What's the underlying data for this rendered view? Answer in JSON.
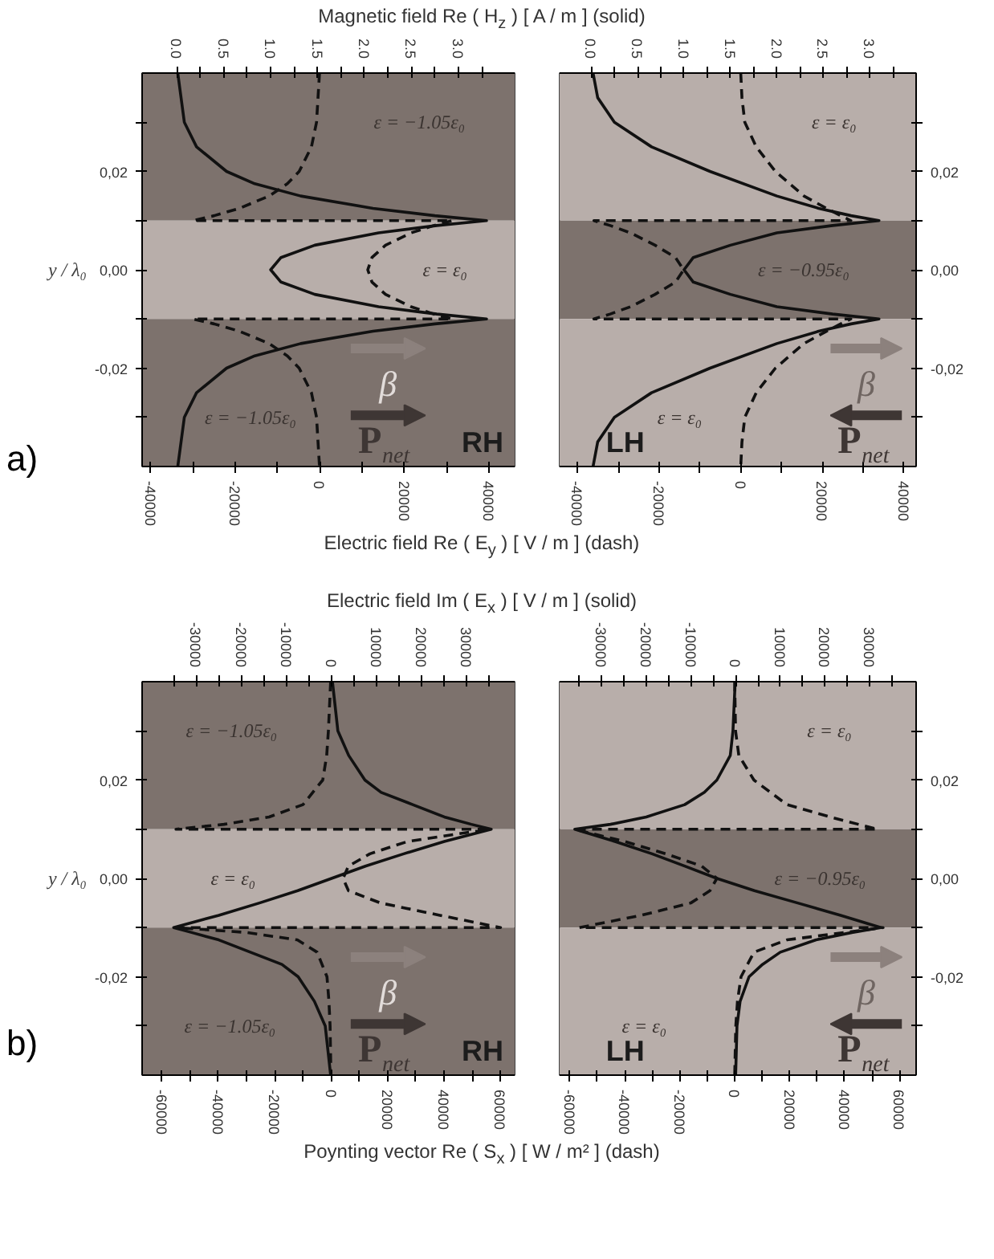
{
  "chart_data": [
    {
      "type": "line",
      "x2label": "Magnetic field Re ( H$_{z}$ ) [ A / m ] (solid)",
      "xlabel": "Electric field Re ( E$_{y}$ ) [ V / m ] (dash)",
      "ylabel": "y / λ₀",
      "xlim": [
        -42000,
        46000
      ],
      "x2lim": [
        -0.37,
        3.6
      ],
      "ylim": [
        -0.04,
        0.04
      ],
      "xticks": [
        -40000,
        {
          "value": -30000,
          "label": null
        },
        -20000,
        {
          "value": -10000,
          "label": null
        },
        0,
        {
          "value": 10000,
          "label": null
        },
        20000,
        {
          "value": 30000,
          "label": null
        },
        40000
      ],
      "x2ticks": [
        {
          "value": 0,
          "label": "0.0"
        },
        {
          "value": 0.25,
          "label": null
        },
        0.5,
        {
          "value": 0.75,
          "label": null
        },
        {
          "value": 1,
          "label": "1.0"
        },
        {
          "value": 1.25,
          "label": null
        },
        1.5,
        {
          "value": 1.75,
          "label": null
        },
        {
          "value": 2,
          "label": "2.0"
        },
        {
          "value": 2.25,
          "label": null
        },
        2.5,
        {
          "value": 2.75,
          "label": null
        },
        {
          "value": 3,
          "label": "3.0"
        },
        {
          "value": 3.25,
          "label": null
        }
      ],
      "yticks": [
        {
          "value": -0.03,
          "label": null
        },
        {
          "value": -0.02,
          "label": "-0,02"
        },
        {
          "value": -0.01,
          "label": null
        },
        {
          "value": 0,
          "label": "0,00"
        },
        {
          "value": 0.01,
          "label": null
        },
        {
          "value": 0.02,
          "label": "0,02"
        },
        {
          "value": 0.03,
          "label": null
        }
      ],
      "bands": [
        {
          "axis": "y",
          "from": 0.01,
          "to": 0.04,
          "color": "#7d726d",
          "label": "ε = −1.05ε₀"
        },
        {
          "axis": "y",
          "from": -0.01,
          "to": 0.01,
          "color": "#b8aeaa",
          "label": "ε = ε₀"
        },
        {
          "axis": "y",
          "from": -0.04,
          "to": -0.01,
          "color": "#7d726d",
          "label": "ε = −1.05ε₀"
        }
      ],
      "series": [
        {
          "color": "#111111",
          "axis": "x2",
          "line_style": "solid",
          "values": [
            0.04,
            0.03,
            0.025,
            0.02,
            0.0175,
            0.015,
            0.0125,
            0.011,
            0.01,
            0.009,
            0.0075,
            0.005,
            0.0025,
            0,
            -0.0025,
            -0.005,
            -0.0075,
            -0.009,
            -0.01,
            -0.011,
            -0.0125,
            -0.015,
            -0.0175,
            -0.02,
            -0.025,
            -0.03,
            -0.04
          ],
          "x": [
            0.01,
            0.08,
            0.21,
            0.53,
            0.83,
            1.32,
            2.09,
            2.75,
            3.3,
            2.77,
            2.15,
            1.47,
            1.11,
            1.0,
            1.11,
            1.47,
            2.15,
            2.77,
            3.3,
            2.75,
            2.09,
            1.32,
            0.83,
            0.53,
            0.21,
            0.08,
            0.01
          ]
        },
        {
          "color": "#111111",
          "line_style": "dashed",
          "values": [
            0.04,
            0.03,
            0.025,
            0.02,
            0.0175,
            0.015,
            0.0125,
            0.011,
            0.01,
            0.01,
            0.009,
            0.0075,
            0.005,
            0.0025,
            0,
            -0.0025,
            -0.005,
            -0.0075,
            -0.009,
            -0.01,
            -0.01,
            -0.011,
            -0.0125,
            -0.015,
            -0.0175,
            -0.02,
            -0.025,
            -0.03,
            -0.04
          ],
          "x": [
            -100,
            -800,
            -2000,
            -4900,
            -7700,
            -12000,
            -19000,
            -25000,
            -30000,
            31300,
            26900,
            21500,
            15500,
            12300,
            11300,
            12300,
            15500,
            21500,
            26900,
            31300,
            -30000,
            -25000,
            -19000,
            -12000,
            -7700,
            -4900,
            -2000,
            -800,
            -100
          ]
        }
      ],
      "annotations": [
        "RH",
        "β",
        "P$_{net}$",
        "a)"
      ]
    },
    {
      "type": "line",
      "xlim": [
        -44400,
        43000
      ],
      "x2lim": [
        -0.34,
        3.5
      ],
      "ylim": [
        -0.04,
        0.04
      ],
      "xticks": [
        -40000,
        {
          "value": -30000,
          "label": null
        },
        -20000,
        {
          "value": -10000,
          "label": null
        },
        0,
        {
          "value": 10000,
          "label": null
        },
        20000,
        {
          "value": 30000,
          "label": null
        },
        40000
      ],
      "x2ticks": [
        {
          "value": 0,
          "label": "0.0"
        },
        {
          "value": 0.25,
          "label": null
        },
        0.5,
        {
          "value": 0.75,
          "label": null
        },
        {
          "value": 1,
          "label": "1.0"
        },
        {
          "value": 1.25,
          "label": null
        },
        1.5,
        {
          "value": 1.75,
          "label": null
        },
        {
          "value": 2,
          "label": "2.0"
        },
        {
          "value": 2.25,
          "label": null
        },
        2.5,
        {
          "value": 2.75,
          "label": null
        },
        {
          "value": 3,
          "label": "3.0"
        },
        {
          "value": 3.25,
          "label": null
        }
      ],
      "yticks": [
        {
          "value": -0.03,
          "label": null
        },
        {
          "value": -0.02,
          "label": "-0,02"
        },
        {
          "value": -0.01,
          "label": null
        },
        {
          "value": 0,
          "label": "0,00"
        },
        {
          "value": 0.01,
          "label": null
        },
        {
          "value": 0.02,
          "label": "0,02"
        },
        {
          "value": 0.03,
          "label": null
        }
      ],
      "bands": [
        {
          "axis": "y",
          "from": 0.01,
          "to": 0.04,
          "color": "#b8aeaa",
          "label": "ε = ε₀"
        },
        {
          "axis": "y",
          "from": -0.01,
          "to": 0.01,
          "color": "#7d726d",
          "label": "ε = −0.95ε₀"
        },
        {
          "axis": "y",
          "from": -0.04,
          "to": -0.01,
          "color": "#b8aeaa",
          "label": "ε = ε₀"
        }
      ],
      "series": [
        {
          "color": "#111111",
          "axis": "x2",
          "line_style": "solid",
          "values": [
            0.04,
            0.035,
            0.03,
            0.025,
            0.02,
            0.015,
            0.0125,
            0.011,
            0.01,
            0.009,
            0.0075,
            0.005,
            0.0025,
            0,
            -0.0025,
            -0.005,
            -0.0075,
            -0.009,
            -0.01,
            -0.011,
            -0.0125,
            -0.015,
            -0.02,
            -0.025,
            -0.03,
            -0.035,
            -0.04
          ],
          "x": [
            0.02,
            0.07,
            0.25,
            0.65,
            1.28,
            2.0,
            2.45,
            2.8,
            3.1,
            2.6,
            2.0,
            1.5,
            1.1,
            1.0,
            1.1,
            1.5,
            2.0,
            2.6,
            3.1,
            2.8,
            2.45,
            2.0,
            1.28,
            0.65,
            0.25,
            0.07,
            0.02
          ]
        },
        {
          "color": "#111111",
          "line_style": "dashed",
          "values": [
            0.04,
            0.035,
            0.03,
            0.025,
            0.02,
            0.015,
            0.0125,
            0.011,
            0.01,
            0.01,
            0.009,
            0.0075,
            0.005,
            0.0025,
            0,
            -0.0025,
            -0.005,
            -0.0075,
            -0.009,
            -0.01,
            -0.01,
            -0.011,
            -0.0125,
            -0.015,
            -0.02,
            -0.025,
            -0.03,
            -0.035,
            -0.04
          ],
          "x": [
            0,
            300,
            1000,
            3800,
            8500,
            15500,
            21000,
            24500,
            27000,
            -36000,
            -32000,
            -27000,
            -21000,
            -16000,
            -14000,
            -16000,
            -21000,
            -27000,
            -32000,
            -36000,
            27000,
            24500,
            21000,
            15500,
            8500,
            3800,
            1000,
            300,
            0
          ]
        }
      ],
      "annotations": [
        "LH",
        "β",
        "P$_{net}$"
      ]
    },
    {
      "type": "line",
      "x2label": "Electric field Im ( E$_{x}$ ) [ V / m ] (solid)",
      "xlabel": "Poynting vector Re ( S$_{x}$ ) [ W / m² ] (dash)",
      "ylabel": "y / λ₀",
      "xlim": [
        -67000,
        65000
      ],
      "x2lim": [
        -42000,
        40600
      ],
      "ylim": [
        -0.04,
        0.04
      ],
      "xticks": [
        -60000,
        {
          "value": -50000,
          "label": null
        },
        -40000,
        {
          "value": -30000,
          "label": null
        },
        -20000,
        {
          "value": -10000,
          "label": null
        },
        0,
        {
          "value": 10000,
          "label": null
        },
        20000,
        {
          "value": 30000,
          "label": null
        },
        40000,
        {
          "value": 50000,
          "label": null
        },
        60000
      ],
      "x2ticks": [
        {
          "value": -35000,
          "label": null
        },
        -30000,
        {
          "value": -25000,
          "label": null
        },
        -20000,
        {
          "value": -15000,
          "label": null
        },
        -10000,
        {
          "value": -5000,
          "label": null
        },
        0,
        {
          "value": 5000,
          "label": null
        },
        10000,
        {
          "value": 15000,
          "label": null
        },
        20000,
        {
          "value": 25000,
          "label": null
        },
        30000,
        {
          "value": 35000,
          "label": null
        }
      ],
      "yticks": [
        {
          "value": -0.03,
          "label": null
        },
        {
          "value": -0.02,
          "label": "-0,02"
        },
        {
          "value": -0.01,
          "label": null
        },
        {
          "value": 0,
          "label": "0,00"
        },
        {
          "value": 0.01,
          "label": null
        },
        {
          "value": 0.02,
          "label": "0,02"
        },
        {
          "value": 0.03,
          "label": null
        }
      ],
      "bands": [
        {
          "axis": "y",
          "from": 0.01,
          "to": 0.04,
          "color": "#7d726d",
          "label": "ε = −1.05ε₀"
        },
        {
          "axis": "y",
          "from": -0.01,
          "to": 0.01,
          "color": "#b8aeaa",
          "label": "ε = ε₀"
        },
        {
          "axis": "y",
          "from": -0.04,
          "to": -0.01,
          "color": "#7d726d",
          "label": "ε = −1.05ε₀"
        }
      ],
      "series": [
        {
          "color": "#111111",
          "axis": "x2",
          "line_style": "solid",
          "values": [
            0.04,
            0.03,
            0.025,
            0.02,
            0.0175,
            0.015,
            0.0125,
            0.011,
            0.01,
            0.0075,
            0.005,
            0.0025,
            0,
            -0.0025,
            -0.005,
            -0.0075,
            -0.01,
            -0.011,
            -0.0125,
            -0.015,
            -0.0175,
            -0.02,
            -0.025,
            -0.03,
            -0.04
          ],
          "x": [
            200,
            1400,
            3800,
            7400,
            11000,
            18000,
            25000,
            31000,
            35400,
            25000,
            16000,
            7500,
            0,
            -7500,
            -16000,
            -25000,
            -35000,
            -31000,
            -25000,
            -18000,
            -11000,
            -7400,
            -3800,
            -1400,
            -200
          ]
        },
        {
          "color": "#111111",
          "line_style": "dashed",
          "values": [
            0.04,
            0.03,
            0.025,
            0.02,
            0.015,
            0.0125,
            0.011,
            0.01,
            0.01,
            0.0075,
            0.005,
            0.0025,
            0,
            -0.0025,
            -0.005,
            -0.0075,
            -0.01,
            -0.01,
            -0.011,
            -0.0125,
            -0.015,
            -0.02,
            -0.025,
            -0.03,
            -0.04
          ],
          "x": [
            -200,
            -1000,
            -1600,
            -3000,
            -10000,
            -22000,
            -38000,
            -55000,
            56000,
            27000,
            13700,
            6100,
            4200,
            6100,
            17500,
            38500,
            60000,
            -55000,
            -30000,
            -12000,
            -5000,
            -1500,
            -800,
            -400,
            -100
          ]
        }
      ],
      "annotations": [
        "RH",
        "β",
        "P$_{net}$",
        "b)"
      ]
    },
    {
      "type": "line",
      "xlim": [
        -63700,
        66000
      ],
      "x2lim": [
        -39400,
        40400
      ],
      "ylim": [
        -0.04,
        0.04
      ],
      "xticks": [
        -60000,
        {
          "value": -50000,
          "label": null
        },
        -40000,
        {
          "value": -30000,
          "label": null
        },
        -20000,
        {
          "value": -10000,
          "label": null
        },
        0,
        {
          "value": 10000,
          "label": null
        },
        20000,
        {
          "value": 30000,
          "label": null
        },
        40000,
        {
          "value": 50000,
          "label": null
        },
        60000
      ],
      "x2ticks": [
        {
          "value": -35000,
          "label": null
        },
        -30000,
        {
          "value": -25000,
          "label": null
        },
        -20000,
        {
          "value": -15000,
          "label": null
        },
        -10000,
        {
          "value": -5000,
          "label": null
        },
        0,
        {
          "value": 5000,
          "label": null
        },
        10000,
        {
          "value": 15000,
          "label": null
        },
        20000,
        {
          "value": 25000,
          "label": null
        },
        30000,
        {
          "value": 35000,
          "label": null
        }
      ],
      "yticks": [
        {
          "value": -0.03,
          "label": null
        },
        {
          "value": -0.02,
          "label": "-0,02"
        },
        {
          "value": -0.01,
          "label": null
        },
        {
          "value": 0,
          "label": "0,00"
        },
        {
          "value": 0.01,
          "label": null
        },
        {
          "value": 0.02,
          "label": "0,02"
        },
        {
          "value": 0.03,
          "label": null
        }
      ],
      "bands": [
        {
          "axis": "y",
          "from": 0.01,
          "to": 0.04,
          "color": "#b8aeaa",
          "label": "ε = ε₀"
        },
        {
          "axis": "y",
          "from": -0.01,
          "to": 0.01,
          "color": "#7d726d",
          "label": "ε = −0.95ε₀"
        },
        {
          "axis": "y",
          "from": -0.04,
          "to": -0.01,
          "color": "#b8aeaa",
          "label": "ε = ε₀"
        }
      ],
      "series": [
        {
          "color": "#111111",
          "axis": "x2",
          "line_style": "solid",
          "values": [
            0.04,
            0.03,
            0.025,
            0.02,
            0.0175,
            0.015,
            0.0125,
            0.011,
            0.01,
            0.0075,
            0.005,
            0.0025,
            0,
            -0.0025,
            -0.005,
            -0.0075,
            -0.01,
            -0.011,
            -0.0125,
            -0.015,
            -0.0175,
            -0.02,
            -0.025,
            -0.03,
            -0.04
          ],
          "x": [
            -100,
            -600,
            -1200,
            -4200,
            -7000,
            -11400,
            -20000,
            -28000,
            -36000,
            -27000,
            -18700,
            -11400,
            -4200,
            4200,
            13900,
            23500,
            32500,
            26000,
            18000,
            10000,
            6000,
            3000,
            1000,
            300,
            0
          ]
        },
        {
          "color": "#111111",
          "line_style": "dashed",
          "values": [
            0.04,
            0.03,
            0.025,
            0.02,
            0.015,
            0.0125,
            0.011,
            0.01,
            0.01,
            0.0075,
            0.005,
            0.0025,
            0,
            -0.0025,
            -0.005,
            -0.0075,
            -0.01,
            -0.01,
            -0.011,
            -0.0125,
            -0.015,
            -0.02,
            -0.025,
            -0.03,
            -0.04
          ],
          "x": [
            0,
            300,
            1500,
            7000,
            19000,
            34700,
            45000,
            52000,
            -58400,
            -40000,
            -25000,
            -12000,
            -6500,
            -9000,
            -16000,
            -34000,
            -56500,
            54000,
            40000,
            19000,
            7000,
            2300,
            1000,
            400,
            0
          ]
        }
      ],
      "annotations": [
        "LH",
        "β",
        "P$_{net}$"
      ]
    }
  ]
}
